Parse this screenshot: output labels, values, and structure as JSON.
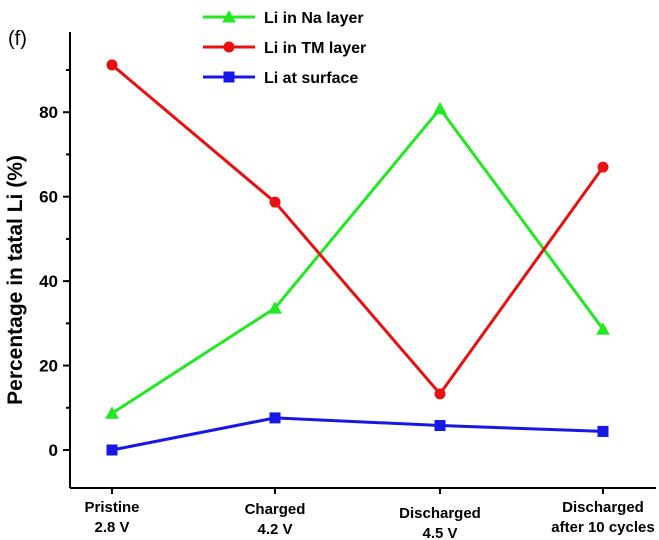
{
  "panel_label": "(f)",
  "chart_data": {
    "type": "line",
    "categories": [
      [
        "Pristine",
        "2.8 V"
      ],
      [
        "Charged",
        "4.2 V"
      ],
      [
        "Discharged",
        "4.5 V"
      ],
      [
        "Discharged",
        "after 10 cycles"
      ]
    ],
    "ylabel": "Percentage in tatal Li (%)",
    "xlabel": "",
    "ylim": [
      -9,
      99
    ],
    "yticks": [
      0,
      20,
      40,
      60,
      80
    ],
    "grid": false,
    "legend_position": "top-center",
    "series": [
      {
        "name": "Li in Na layer",
        "color": "#22e822",
        "marker": "triangle",
        "values": [
          8.7,
          33.6,
          80.8,
          28.6
        ]
      },
      {
        "name": "Li in TM layer",
        "color": "#e81010",
        "marker": "circle",
        "values": [
          91.2,
          58.7,
          13.3,
          67.0
        ]
      },
      {
        "name": "Li at surface",
        "color": "#1717e8",
        "marker": "square",
        "values": [
          0.0,
          7.6,
          5.8,
          4.4
        ]
      }
    ]
  }
}
